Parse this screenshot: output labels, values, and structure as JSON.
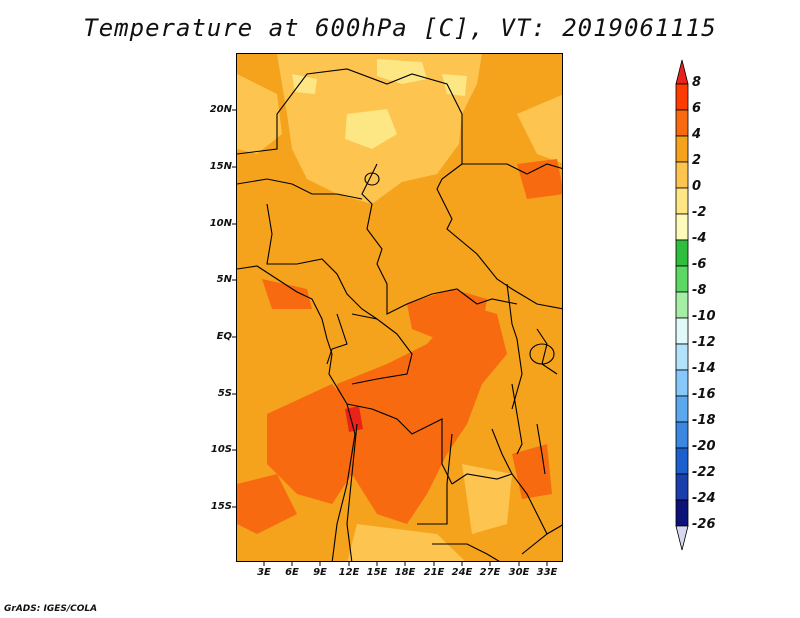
{
  "title": "Temperature at 600hPa [C], VT: 2019061115",
  "footer": "GrADS: IGES/COLA",
  "y_axis_labels": [
    "20N",
    "15N",
    "10N",
    "5N",
    "EQ",
    "5S",
    "10S",
    "15S"
  ],
  "x_axis_labels": [
    "3E",
    "6E",
    "9E",
    "12E",
    "15E",
    "18E",
    "21E",
    "24E",
    "27E",
    "30E",
    "33E"
  ],
  "colorbar": {
    "levels": [
      "8",
      "6",
      "4",
      "2",
      "0",
      "-2",
      "-4",
      "-6",
      "-8",
      "-10",
      "-12",
      "-14",
      "-16",
      "-18",
      "-20",
      "-22",
      "-24",
      "-26"
    ],
    "colors": [
      "#e8231a",
      "#ff3c00",
      "#f76a10",
      "#f5a21d",
      "#fdc44f",
      "#fde684",
      "#fdfbbc",
      "#2fbe3e",
      "#5ed865",
      "#a5eea5",
      "#e1f9f8",
      "#b3e3fb",
      "#85c8f9",
      "#5ba8ef",
      "#3c87e0",
      "#1c5fce",
      "#1a3fad",
      "#0d1278",
      "#d8d8f0"
    ]
  },
  "map_colors": {
    "base": "#f5a21d",
    "warm": "#f76a10",
    "warmest": "#e8231a",
    "cool": "#fdc44f",
    "coolest": "#fde684",
    "border": "#000000"
  }
}
